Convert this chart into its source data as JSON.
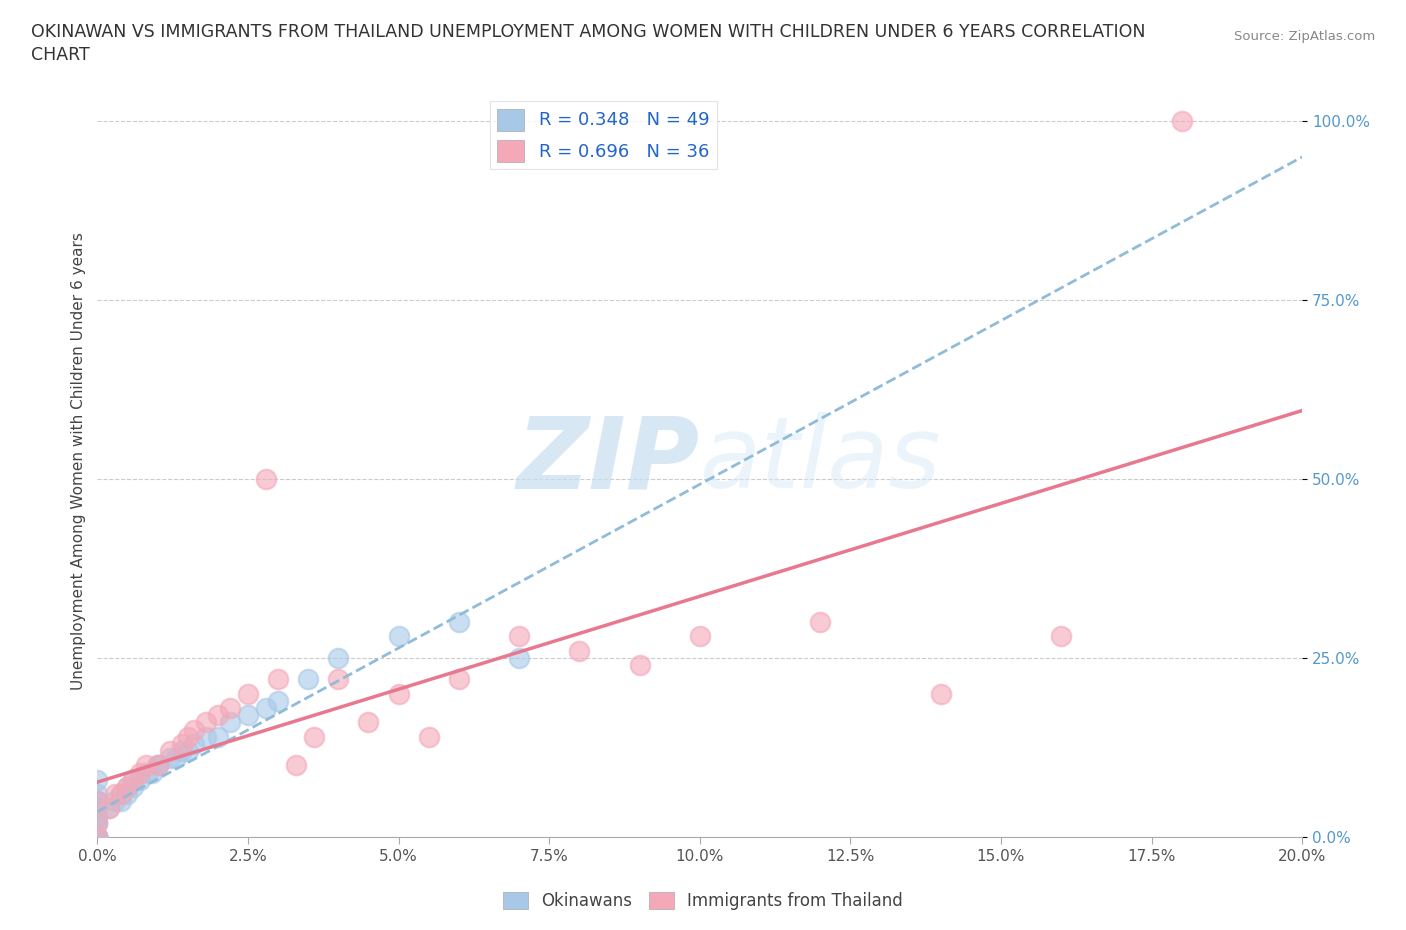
{
  "title_line1": "OKINAWAN VS IMMIGRANTS FROM THAILAND UNEMPLOYMENT AMONG WOMEN WITH CHILDREN UNDER 6 YEARS CORRELATION",
  "title_line2": "CHART",
  "source": "Source: ZipAtlas.com",
  "ylabel": "Unemployment Among Women with Children Under 6 years",
  "x_tick_labels": [
    "0.0%",
    "2.5%",
    "5.0%",
    "7.5%",
    "10.0%",
    "12.5%",
    "15.0%",
    "17.5%",
    "20.0%"
  ],
  "y_tick_labels": [
    "0.0%",
    "25.0%",
    "50.0%",
    "75.0%",
    "100.0%"
  ],
  "xlim": [
    0.0,
    0.2
  ],
  "ylim": [
    0.0,
    1.05
  ],
  "legend1_label": "R = 0.348   N = 49",
  "legend2_label": "R = 0.696   N = 36",
  "legend_bottom_labels": [
    "Okinawans",
    "Immigrants from Thailand"
  ],
  "blue_scatter_color": "#a8c8e8",
  "pink_scatter_color": "#f4a8b8",
  "blue_line_color": "#90bcd8",
  "pink_line_color": "#e87890",
  "watermark_color": "#daeef8",
  "okinawan_x": [
    0.0,
    0.0,
    0.0,
    0.0,
    0.0,
    0.0,
    0.0,
    0.0,
    0.0,
    0.0,
    0.0,
    0.0,
    0.0,
    0.0,
    0.0,
    0.0,
    0.0,
    0.0,
    0.0,
    0.0,
    0.002,
    0.003,
    0.004,
    0.004,
    0.005,
    0.005,
    0.006,
    0.006,
    0.007,
    0.008,
    0.009,
    0.01,
    0.01,
    0.012,
    0.013,
    0.014,
    0.015,
    0.016,
    0.018,
    0.02,
    0.022,
    0.025,
    0.028,
    0.03,
    0.035,
    0.04,
    0.05,
    0.06,
    0.07
  ],
  "okinawan_y": [
    0.0,
    0.0,
    0.0,
    0.0,
    0.0,
    0.0,
    0.0,
    0.0,
    0.0,
    0.0,
    0.02,
    0.02,
    0.03,
    0.03,
    0.04,
    0.04,
    0.05,
    0.05,
    0.06,
    0.08,
    0.04,
    0.05,
    0.05,
    0.06,
    0.06,
    0.07,
    0.07,
    0.08,
    0.08,
    0.09,
    0.09,
    0.1,
    0.1,
    0.11,
    0.11,
    0.12,
    0.12,
    0.13,
    0.14,
    0.14,
    0.16,
    0.17,
    0.18,
    0.19,
    0.22,
    0.25,
    0.28,
    0.3,
    0.25
  ],
  "thailand_x": [
    0.0,
    0.0,
    0.0,
    0.002,
    0.003,
    0.004,
    0.005,
    0.006,
    0.007,
    0.008,
    0.01,
    0.012,
    0.014,
    0.015,
    0.016,
    0.018,
    0.02,
    0.022,
    0.025,
    0.028,
    0.03,
    0.033,
    0.036,
    0.04,
    0.045,
    0.05,
    0.055,
    0.06,
    0.07,
    0.08,
    0.09,
    0.1,
    0.12,
    0.14,
    0.16,
    0.18
  ],
  "thailand_y": [
    0.0,
    0.02,
    0.05,
    0.04,
    0.06,
    0.06,
    0.07,
    0.08,
    0.09,
    0.1,
    0.1,
    0.12,
    0.13,
    0.14,
    0.15,
    0.16,
    0.17,
    0.18,
    0.2,
    0.5,
    0.22,
    0.1,
    0.14,
    0.22,
    0.16,
    0.2,
    0.14,
    0.22,
    0.28,
    0.26,
    0.24,
    0.28,
    0.3,
    0.2,
    0.28,
    1.0
  ]
}
